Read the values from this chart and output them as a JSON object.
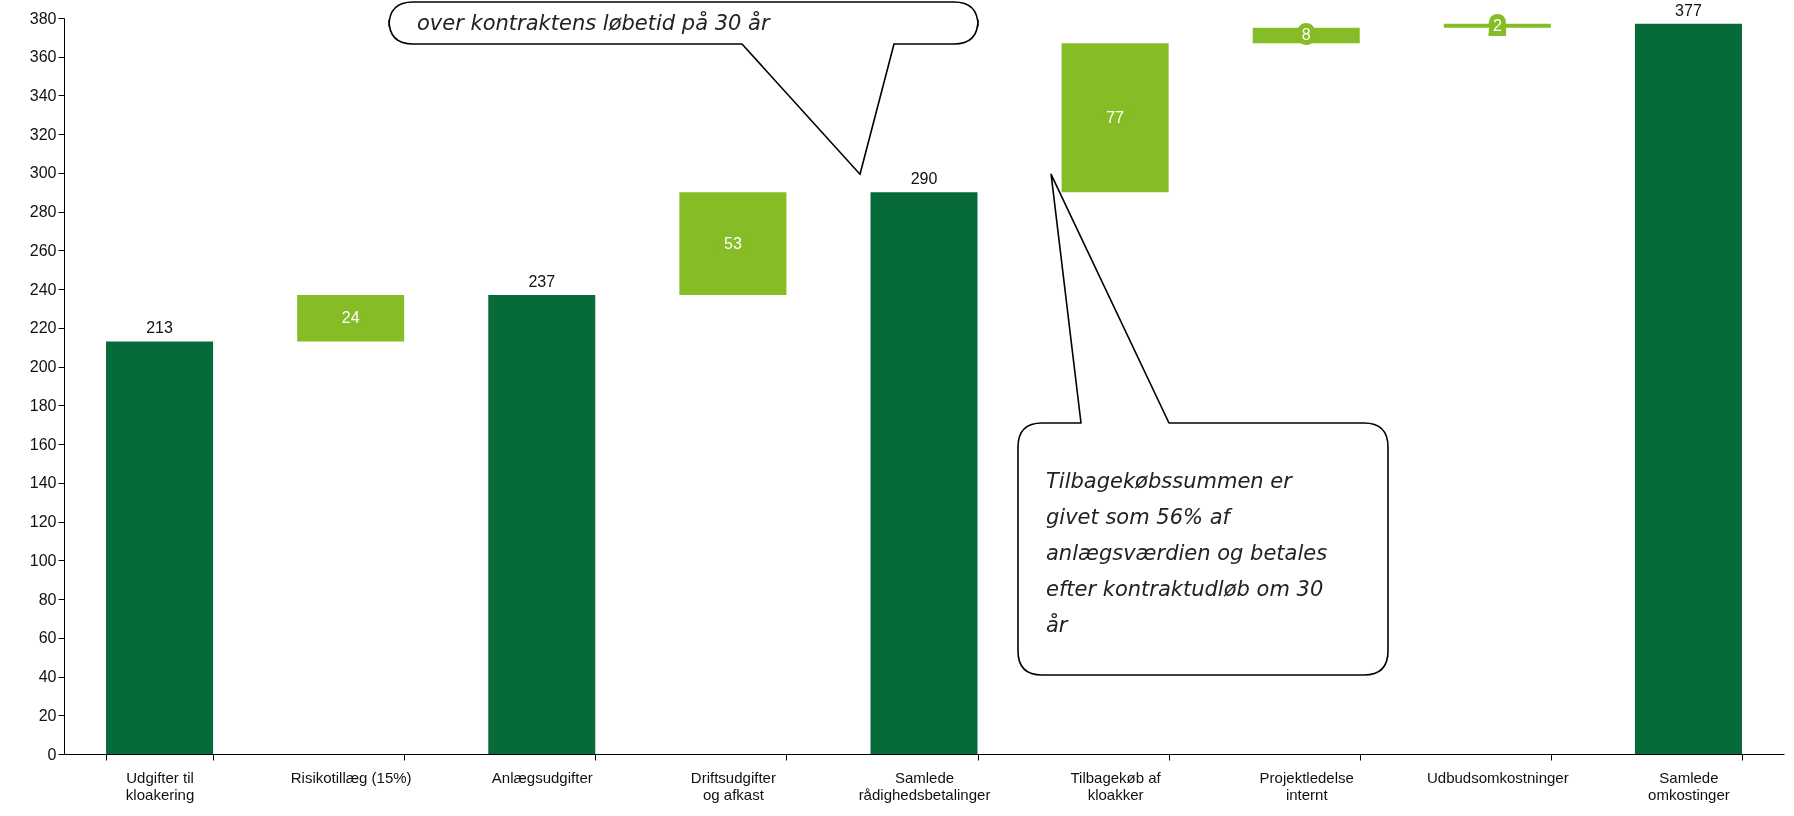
{
  "chart_data": {
    "type": "bar",
    "categories": [
      "Udgifter til kloakering",
      "Risikotillæg (15%)",
      "Anlægsudgifter",
      "Driftsudgifter og afkast",
      "Samlede rådighedsbetalinger",
      "Tilbagekøb af kloakker",
      "Projektledelse internt",
      "Udbudsomkostninger",
      "Samlede omkostinger"
    ],
    "values": [
      213,
      24,
      237,
      53,
      290,
      77,
      8,
      2,
      377
    ],
    "base": [
      0,
      213,
      0,
      237,
      0,
      290,
      367,
      375,
      0
    ],
    "colors": [
      "#066b38",
      "#86bc25",
      "#066b38",
      "#86bc25",
      "#066b38",
      "#86bc25",
      "#86bc25",
      "#86bc25",
      "#066b38"
    ],
    "data_labels": true,
    "ylim": [
      0,
      380
    ],
    "yticks": [
      0,
      20,
      40,
      60,
      80,
      100,
      120,
      140,
      160,
      180,
      200,
      220,
      240,
      260,
      280,
      300,
      320,
      340,
      360,
      380
    ],
    "grid": false,
    "annotations": [
      "over kontraktens løbetid på 30 år",
      "Tilbagekøbssummen er givet som 56% af anlægsværdien og betales efter kontraktudløb om 30 år"
    ]
  }
}
